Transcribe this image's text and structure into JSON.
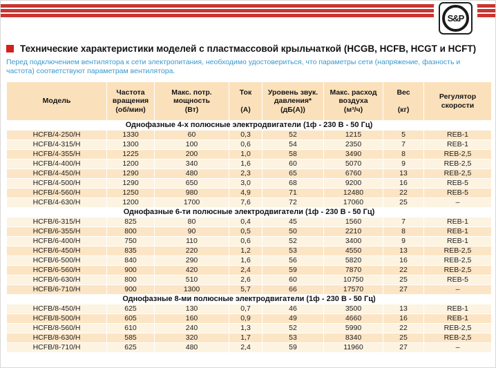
{
  "brand": {
    "logo_text": "S&P"
  },
  "title": {
    "text": "Технические характеристики моделей с пластмассовой крыльчаткой (HCGB, HCFB, HCGT и HCFT)"
  },
  "intro": {
    "text": "Перед подключением вентилятора к сети электропитания, необходимо удостовериться, что параметры сети (напряжение, фазность и частота) соответствуют параметрам вентилятора."
  },
  "colors": {
    "stripe_red": "#c93531",
    "bullet_red": "#d2201f",
    "intro_blue": "#3898cd",
    "header_beige": "#fbe1bb",
    "row_peach": "#fce5c5",
    "row_cream": "#fdf3e1"
  },
  "table": {
    "columns": [
      {
        "label": "Модель"
      },
      {
        "label": "Частота\nвращения\n(об/мин)"
      },
      {
        "label": "Макс. потр.\nмощность\n(Вт)"
      },
      {
        "label": "Ток\n\n(А)"
      },
      {
        "label": "Уровень звук.\nдавления*\n(дБ(А))"
      },
      {
        "label": "Макс. расход\nвоздуха\n(м³/ч)"
      },
      {
        "label": "Вес\n\n(кг)"
      },
      {
        "label": "Регулятор\nскорости"
      }
    ],
    "sections": [
      {
        "title": "Однофазные 4-х полюсные электродвигатели (1ф - 230 В - 50 Гц)",
        "first_row_shade": "peach",
        "rows": [
          [
            "HCFB/4-250/H",
            "1330",
            "60",
            "0,3",
            "52",
            "1215",
            "5",
            "REB-1"
          ],
          [
            "HCFB/4-315/H",
            "1300",
            "100",
            "0,6",
            "54",
            "2350",
            "7",
            "REB-1"
          ],
          [
            "HCFB/4-355/H",
            "1225",
            "200",
            "1,0",
            "58",
            "3490",
            "8",
            "REB-2,5"
          ],
          [
            "HCFB/4-400/H",
            "1200",
            "340",
            "1,6",
            "60",
            "5070",
            "9",
            "REB-2,5"
          ],
          [
            "HCFB/4-450/H",
            "1290",
            "480",
            "2,3",
            "65",
            "6760",
            "13",
            "REB-2,5"
          ],
          [
            "HCFB/4-500/H",
            "1290",
            "650",
            "3,0",
            "68",
            "9200",
            "16",
            "REB-5"
          ],
          [
            "HCFB/4-560/H",
            "1250",
            "980",
            "4,9",
            "71",
            "12480",
            "22",
            "REB-5"
          ],
          [
            "HCFB/4-630/H",
            "1200",
            "1700",
            "7,6",
            "72",
            "17060",
            "25",
            "–"
          ]
        ]
      },
      {
        "title": "Однофазные 6-ти полюсные электродвигатели (1ф - 230 В - 50 Гц)",
        "first_row_shade": "cream",
        "rows": [
          [
            "HCFB/6-315/H",
            "825",
            "80",
            "0,4",
            "45",
            "1560",
            "7",
            "REB-1"
          ],
          [
            "HCFB/6-355/H",
            "800",
            "90",
            "0,5",
            "50",
            "2210",
            "8",
            "REB-1"
          ],
          [
            "HCFB/6-400/H",
            "750",
            "110",
            "0,6",
            "52",
            "3400",
            "9",
            "REB-1"
          ],
          [
            "HCFB/6-450/H",
            "835",
            "220",
            "1,2",
            "53",
            "4550",
            "13",
            "REB-2,5"
          ],
          [
            "HCFB/6-500/H",
            "840",
            "290",
            "1,6",
            "56",
            "5820",
            "16",
            "REB-2,5"
          ],
          [
            "HCFB/6-560/H",
            "900",
            "420",
            "2,4",
            "59",
            "7870",
            "22",
            "REB-2,5"
          ],
          [
            "HCFB/6-630/H",
            "800",
            "510",
            "2,6",
            "60",
            "10750",
            "25",
            "REB-5"
          ],
          [
            "HCFB/6-710/H",
            "900",
            "1300",
            "5,7",
            "66",
            "17570",
            "27",
            "–"
          ]
        ]
      },
      {
        "title": "Однофазные 8-ми полюсные электродвигатели (1ф - 230 В - 50 Гц)",
        "first_row_shade": "cream",
        "rows": [
          [
            "HCFB/8-450/H",
            "625",
            "130",
            "0,7",
            "46",
            "3500",
            "13",
            "REB-1"
          ],
          [
            "HCFB/8-500/H",
            "605",
            "160",
            "0,9",
            "49",
            "4660",
            "16",
            "REB-1"
          ],
          [
            "HCFB/8-560/H",
            "610",
            "240",
            "1,3",
            "52",
            "5990",
            "22",
            "REB-2,5"
          ],
          [
            "HCFB/8-630/H",
            "585",
            "320",
            "1,7",
            "53",
            "8340",
            "25",
            "REB-2,5"
          ],
          [
            "HCFB/8-710/H",
            "625",
            "480",
            "2,4",
            "59",
            "11960",
            "27",
            "–"
          ]
        ]
      }
    ]
  }
}
